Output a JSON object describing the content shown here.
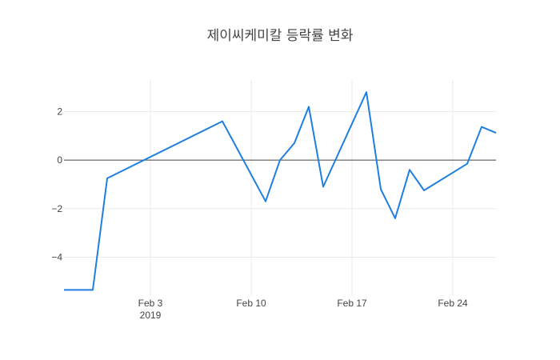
{
  "chart_data": {
    "type": "line",
    "title": "제이씨케미칼 등락률 변화",
    "xlabel": "",
    "ylabel": "",
    "x_range": [
      "2019-01-28",
      "2019-02-27"
    ],
    "y_range": [
      -5.6,
      3.3
    ],
    "x_ticks": [
      {
        "date": "2019-02-03",
        "label": "Feb 3",
        "sublabel": "2019"
      },
      {
        "date": "2019-02-10",
        "label": "Feb 10",
        "sublabel": ""
      },
      {
        "date": "2019-02-17",
        "label": "Feb 17",
        "sublabel": ""
      },
      {
        "date": "2019-02-24",
        "label": "Feb 24",
        "sublabel": ""
      }
    ],
    "y_ticks": [
      {
        "value": 2,
        "label": "2"
      },
      {
        "value": 0,
        "label": "0"
      },
      {
        "value": -2,
        "label": "−2"
      },
      {
        "value": -4,
        "label": "−4"
      }
    ],
    "grid": true,
    "zero_line": true,
    "series": [
      {
        "color": "#1f7fe0",
        "x": [
          "2019-01-28",
          "2019-01-30",
          "2019-01-31",
          "2019-02-08",
          "2019-02-11",
          "2019-02-12",
          "2019-02-13",
          "2019-02-14",
          "2019-02-15",
          "2019-02-18",
          "2019-02-19",
          "2019-02-20",
          "2019-02-21",
          "2019-02-22",
          "2019-02-25",
          "2019-02-26",
          "2019-02-27"
        ],
        "y": [
          -5.35,
          -5.35,
          -0.75,
          1.6,
          -1.7,
          0.0,
          0.7,
          2.2,
          -1.1,
          2.8,
          -1.2,
          -2.4,
          -0.4,
          -1.25,
          -0.15,
          1.37,
          1.12
        ]
      }
    ]
  }
}
